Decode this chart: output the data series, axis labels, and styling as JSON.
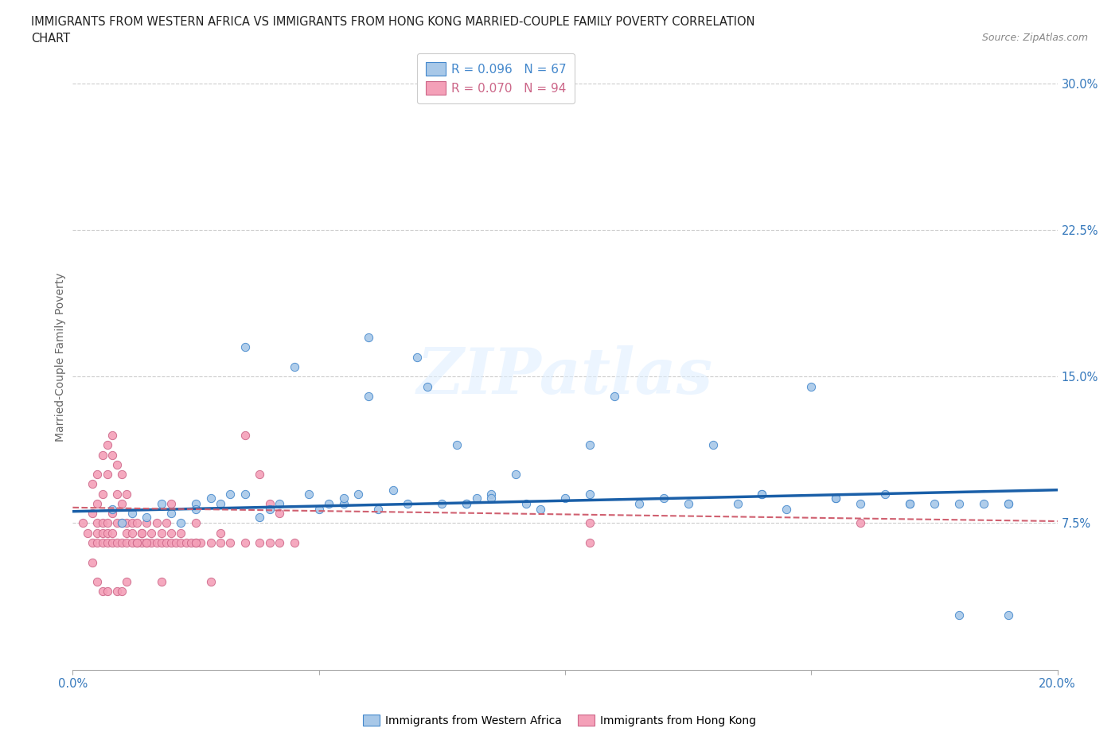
{
  "title_line1": "IMMIGRANTS FROM WESTERN AFRICA VS IMMIGRANTS FROM HONG KONG MARRIED-COUPLE FAMILY POVERTY CORRELATION",
  "title_line2": "CHART",
  "source_text": "Source: ZipAtlas.com",
  "ylabel": "Married-Couple Family Poverty",
  "yticks": [
    "30.0%",
    "22.5%",
    "15.0%",
    "7.5%"
  ],
  "ytick_vals": [
    0.3,
    0.225,
    0.15,
    0.075
  ],
  "r_western_africa": 0.096,
  "n_western_africa": 67,
  "r_hong_kong": 0.07,
  "n_hong_kong": 94,
  "color_western_africa": "#A8C8E8",
  "color_hong_kong": "#F4A0B8",
  "edge_western_africa": "#4488CC",
  "edge_hong_kong": "#CC6688",
  "trendline_western_africa_color": "#1A5FA8",
  "trendline_hong_kong_color": "#D06070",
  "watermark": "ZIPatlas",
  "xmin": 0.0,
  "xmax": 0.2,
  "ymin": 0.0,
  "ymax": 0.32,
  "wa_trendline_x0": 0.0,
  "wa_trendline_y0": 0.081,
  "wa_trendline_x1": 0.2,
  "wa_trendline_y1": 0.092,
  "hk_trendline_x0": 0.0,
  "hk_trendline_y0": 0.083,
  "hk_trendline_x1": 0.2,
  "hk_trendline_y1": 0.076,
  "western_africa_x": [
    0.008,
    0.01,
    0.012,
    0.015,
    0.018,
    0.02,
    0.022,
    0.025,
    0.025,
    0.028,
    0.03,
    0.032,
    0.035,
    0.038,
    0.04,
    0.042,
    0.045,
    0.048,
    0.05,
    0.052,
    0.055,
    0.055,
    0.058,
    0.06,
    0.062,
    0.065,
    0.068,
    0.07,
    0.072,
    0.075,
    0.078,
    0.08,
    0.082,
    0.085,
    0.09,
    0.092,
    0.095,
    0.1,
    0.105,
    0.11,
    0.115,
    0.12,
    0.125,
    0.13,
    0.135,
    0.14,
    0.145,
    0.15,
    0.155,
    0.16,
    0.165,
    0.17,
    0.175,
    0.18,
    0.185,
    0.035,
    0.085,
    0.19,
    0.105,
    0.06,
    0.08,
    0.14,
    0.155,
    0.17,
    0.18,
    0.19,
    0.19
  ],
  "western_africa_y": [
    0.082,
    0.075,
    0.08,
    0.078,
    0.085,
    0.08,
    0.075,
    0.085,
    0.082,
    0.088,
    0.085,
    0.09,
    0.165,
    0.078,
    0.082,
    0.085,
    0.155,
    0.09,
    0.082,
    0.085,
    0.085,
    0.088,
    0.09,
    0.17,
    0.082,
    0.092,
    0.085,
    0.16,
    0.145,
    0.085,
    0.115,
    0.085,
    0.088,
    0.09,
    0.1,
    0.085,
    0.082,
    0.088,
    0.115,
    0.14,
    0.085,
    0.088,
    0.085,
    0.115,
    0.085,
    0.09,
    0.082,
    0.145,
    0.088,
    0.085,
    0.09,
    0.085,
    0.085,
    0.085,
    0.085,
    0.09,
    0.088,
    0.085,
    0.09,
    0.14,
    0.085,
    0.09,
    0.088,
    0.085,
    0.028,
    0.028,
    0.085
  ],
  "hong_kong_x": [
    0.002,
    0.003,
    0.004,
    0.004,
    0.005,
    0.005,
    0.005,
    0.006,
    0.006,
    0.006,
    0.007,
    0.007,
    0.007,
    0.008,
    0.008,
    0.008,
    0.009,
    0.009,
    0.009,
    0.01,
    0.01,
    0.01,
    0.011,
    0.011,
    0.011,
    0.012,
    0.012,
    0.012,
    0.013,
    0.013,
    0.014,
    0.014,
    0.015,
    0.015,
    0.016,
    0.016,
    0.017,
    0.017,
    0.018,
    0.018,
    0.019,
    0.019,
    0.02,
    0.02,
    0.021,
    0.022,
    0.022,
    0.023,
    0.024,
    0.025,
    0.026,
    0.028,
    0.03,
    0.032,
    0.035,
    0.038,
    0.04,
    0.042,
    0.045,
    0.005,
    0.006,
    0.007,
    0.008,
    0.009,
    0.01,
    0.011,
    0.004,
    0.005,
    0.006,
    0.007,
    0.008,
    0.02,
    0.025,
    0.03,
    0.105,
    0.105,
    0.16,
    0.035,
    0.038,
    0.04,
    0.042,
    0.025,
    0.028,
    0.013,
    0.014,
    0.015,
    0.004,
    0.005,
    0.006,
    0.007,
    0.018,
    0.009,
    0.01,
    0.011
  ],
  "hong_kong_y": [
    0.075,
    0.07,
    0.065,
    0.08,
    0.07,
    0.075,
    0.065,
    0.075,
    0.065,
    0.07,
    0.065,
    0.07,
    0.075,
    0.065,
    0.07,
    0.08,
    0.065,
    0.075,
    0.09,
    0.065,
    0.075,
    0.085,
    0.065,
    0.07,
    0.075,
    0.065,
    0.075,
    0.07,
    0.065,
    0.075,
    0.065,
    0.07,
    0.065,
    0.075,
    0.065,
    0.07,
    0.075,
    0.065,
    0.065,
    0.07,
    0.065,
    0.075,
    0.065,
    0.07,
    0.065,
    0.07,
    0.065,
    0.065,
    0.065,
    0.065,
    0.065,
    0.065,
    0.065,
    0.065,
    0.065,
    0.065,
    0.065,
    0.065,
    0.065,
    0.085,
    0.09,
    0.1,
    0.11,
    0.105,
    0.1,
    0.09,
    0.095,
    0.1,
    0.11,
    0.115,
    0.12,
    0.085,
    0.075,
    0.07,
    0.075,
    0.065,
    0.075,
    0.12,
    0.1,
    0.085,
    0.08,
    0.065,
    0.045,
    0.065,
    0.07,
    0.065,
    0.055,
    0.045,
    0.04,
    0.04,
    0.045,
    0.04,
    0.04,
    0.045
  ]
}
